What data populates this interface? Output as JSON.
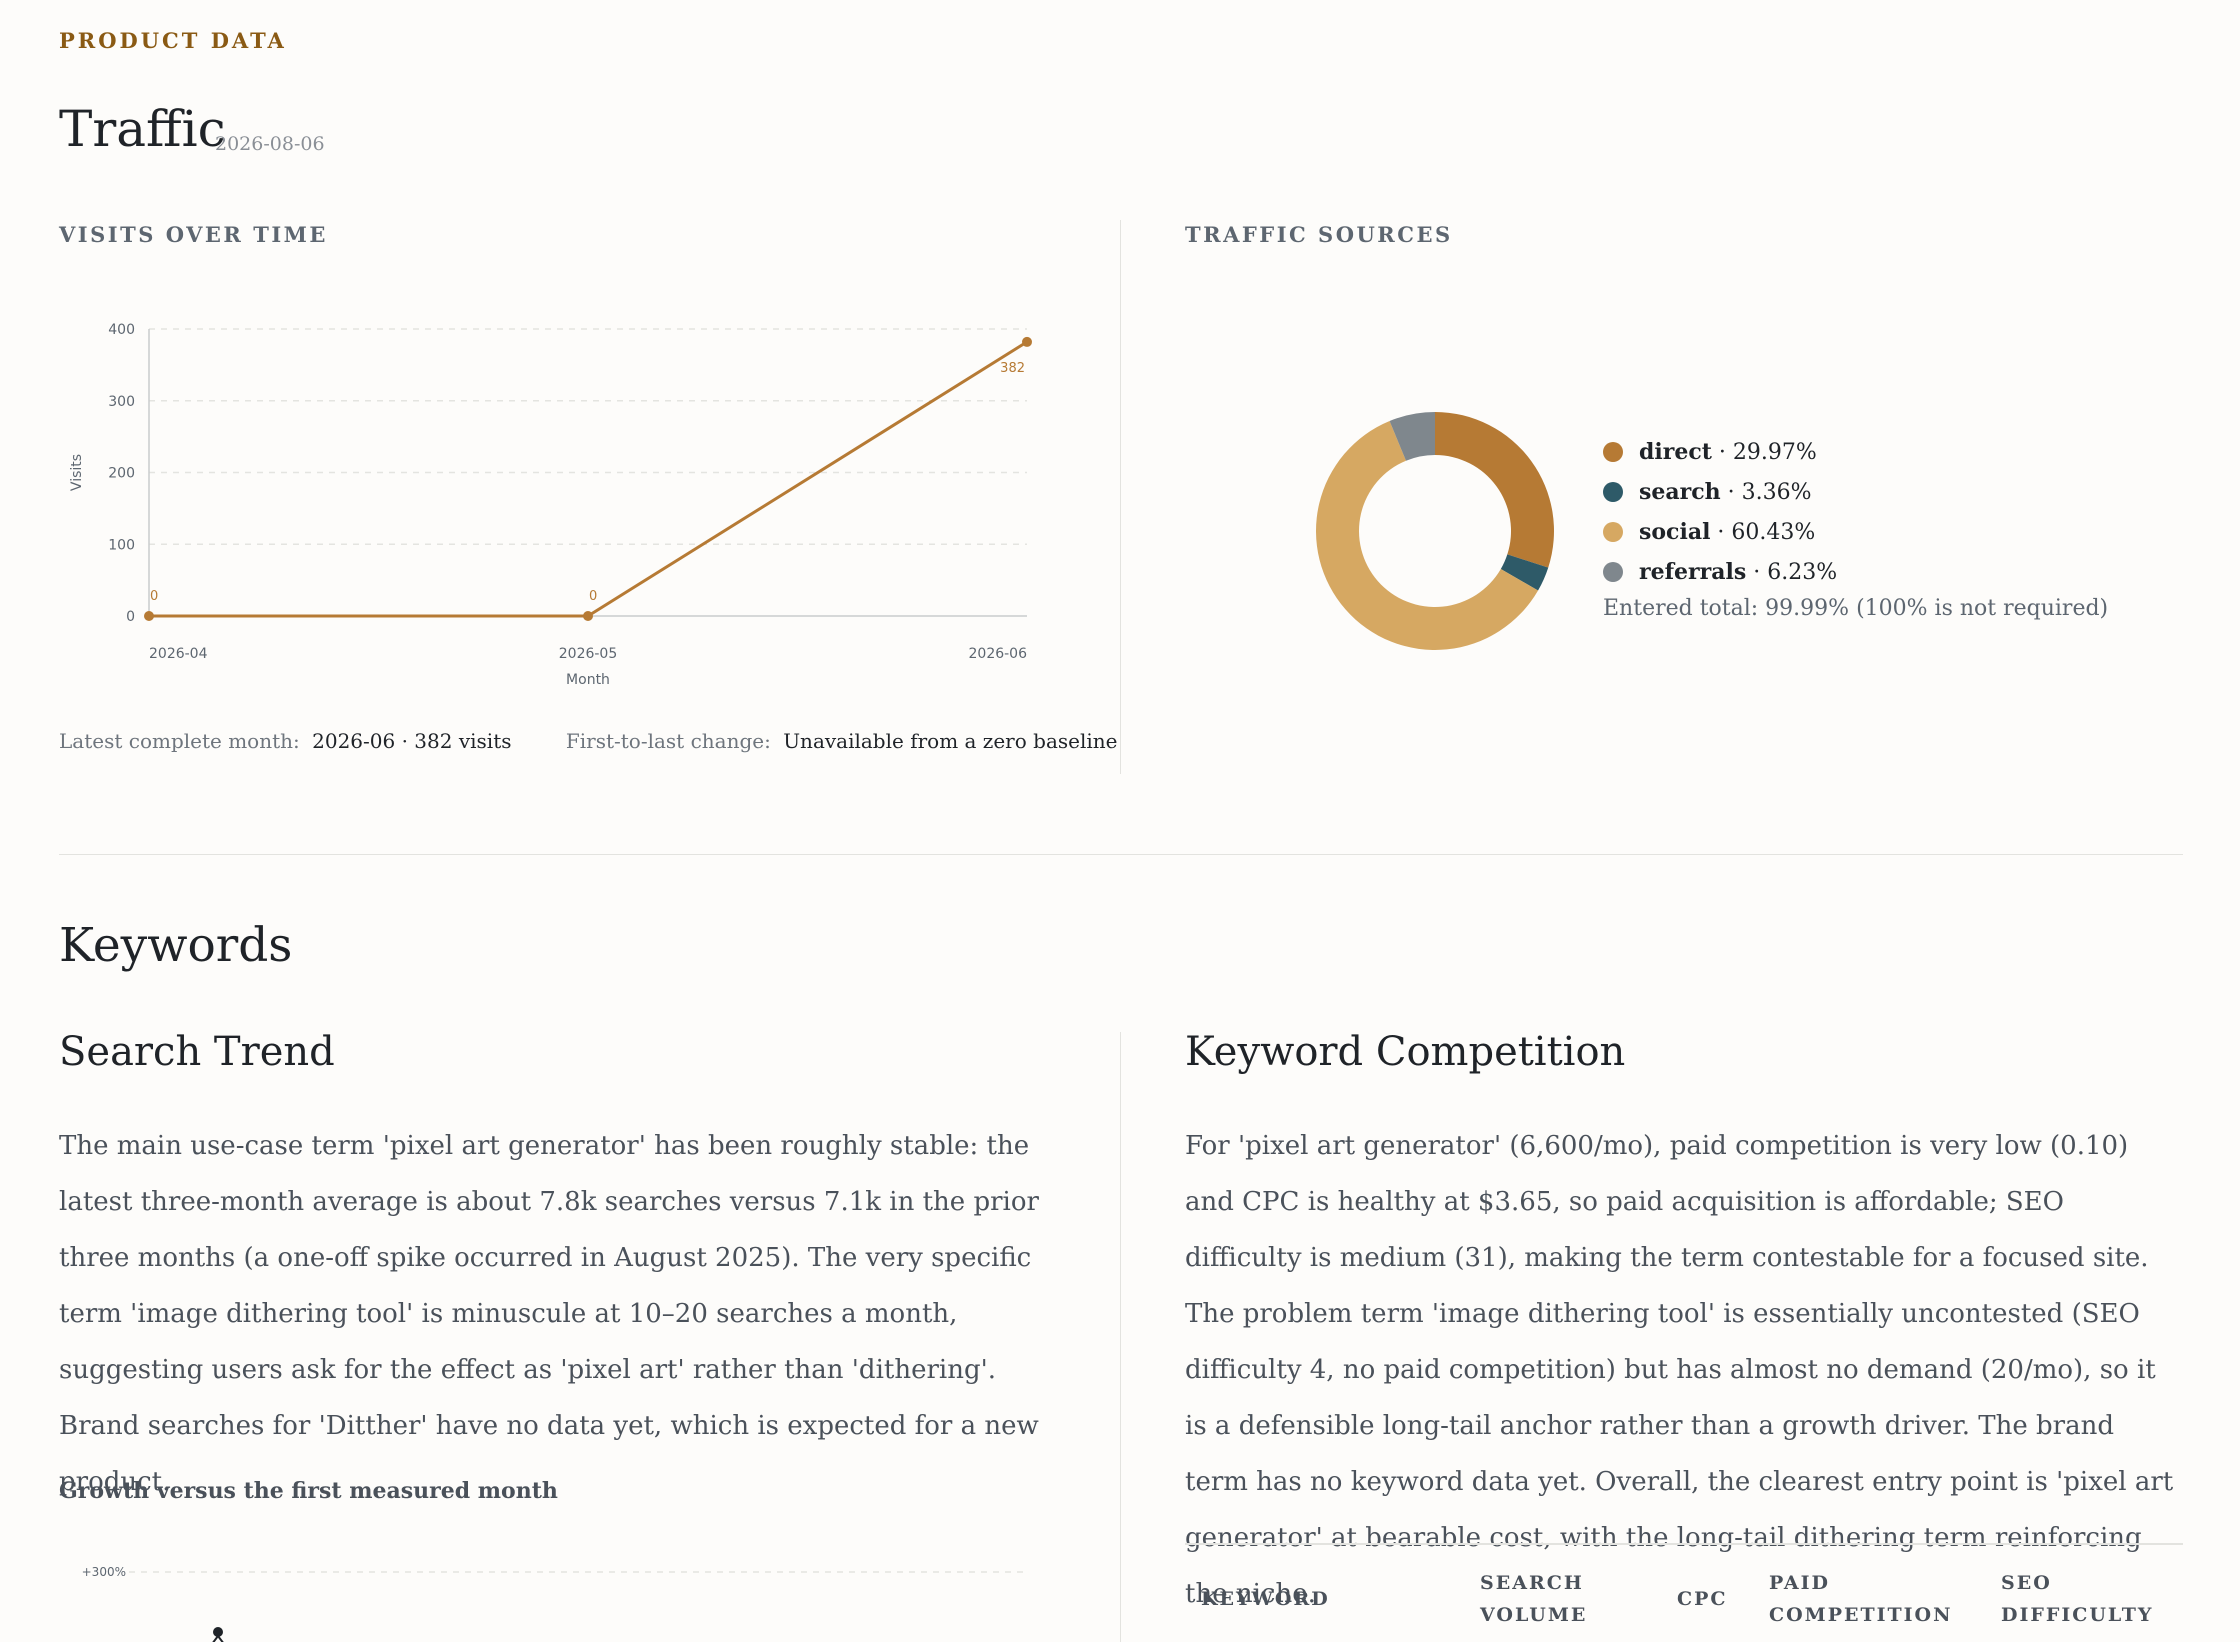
{
  "eyebrow": "PRODUCT DATA",
  "traffic": {
    "title": "Traffic",
    "date": "2026-08-06",
    "visits_label": "VISITS OVER TIME",
    "sources_label": "TRAFFIC SOURCES",
    "latest_label": "Latest complete month:",
    "latest_value": "2026-06 · 382 visits",
    "change_label": "First-to-last change:",
    "change_value": "Unavailable from a zero baseline"
  },
  "chart_data": [
    {
      "type": "line",
      "x": [
        "2026-04",
        "2026-05",
        "2026-06"
      ],
      "series": [
        {
          "values": [
            0,
            0,
            382
          ]
        }
      ],
      "data_labels": [
        "0",
        "0",
        "382"
      ],
      "xlabel": "Month",
      "ylabel": "Visits",
      "ylim": [
        0,
        400
      ],
      "yticks": [
        "0",
        "100",
        "200",
        "300",
        "400"
      ],
      "grid": true,
      "color": "#b67a34"
    },
    {
      "type": "pie",
      "donut": true,
      "slices": [
        {
          "name": "direct",
          "value": 29.97,
          "pct": "29.97%",
          "color": "#b67a34"
        },
        {
          "name": "search",
          "value": 3.36,
          "pct": "3.36%",
          "color": "#2e5a68"
        },
        {
          "name": "social",
          "value": 60.43,
          "pct": "60.43%",
          "color": "#d6a862"
        },
        {
          "name": "referrals",
          "value": 6.23,
          "pct": "6.23%",
          "color": "#7f878d"
        }
      ],
      "total_note": "Entered total: 99.99% (100% is not required)",
      "legend_position": "right"
    },
    {
      "type": "line",
      "title": "Growth versus the first measured month",
      "yticks": [
        "+300%"
      ],
      "grid": true
    }
  ],
  "keywords": {
    "title": "Keywords",
    "trend_title": "Search Trend",
    "trend_text": "The main use-case term 'pixel art generator' has been roughly stable: the latest three-month average is about 7.8k searches versus 7.1k in the prior three months (a one-off spike occurred in August 2025). The very specific term 'image dithering tool' is minuscule at 10–20 searches a month, suggesting users ask for the effect as 'pixel art' rather than 'dithering'. Brand searches for 'Ditther' have no data yet, which is expected for a new product.",
    "growth_title": "Growth versus the first measured month",
    "competition_title": "Keyword Competition",
    "competition_text": "For 'pixel art generator' (6,600/mo), paid competition is very low (0.10) and CPC is healthy at $3.65, so paid acquisition is affordable; SEO difficulty is medium (31), making the term contestable for a focused site. The problem term 'image dithering tool' is essentially uncontested (SEO difficulty 4, no paid competition) but has almost no demand (20/mo), so it is a defensible long-tail anchor rather than a growth driver. The brand term has no keyword data yet. Overall, the clearest entry point is 'pixel art generator' at bearable cost, with the long-tail dithering term reinforcing the niche.",
    "table_headers": [
      "KEYWORD",
      "SEARCH VOLUME",
      "CPC",
      "PAID COMPETITION",
      "SEO DIFFICULTY"
    ]
  }
}
